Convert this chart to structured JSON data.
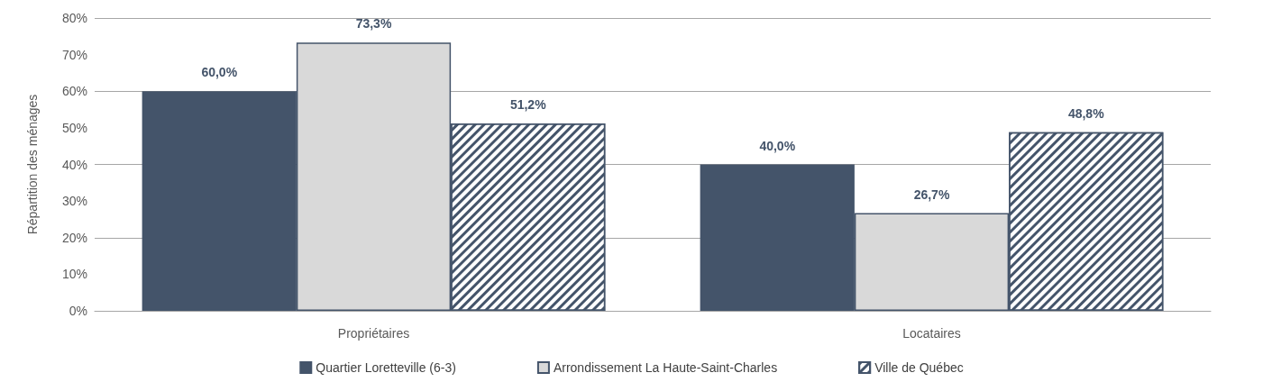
{
  "chart_data": {
    "type": "bar",
    "ylabel": "Répartition des ménages",
    "categories": [
      "Propriétaires",
      "Locataires"
    ],
    "series": [
      {
        "name": "Quartier Loretteville (6-3)",
        "color": "#44546a",
        "values": [
          60.0,
          40.0
        ],
        "value_labels": [
          "60,0%",
          "40,0%"
        ]
      },
      {
        "name": "Arrondissement La Haute-Saint-Charles",
        "color": "#d9d9d9",
        "values": [
          73.3,
          26.7
        ],
        "value_labels": [
          "73,3%",
          "26,7%"
        ]
      },
      {
        "name": "Ville de Québec",
        "color": "#44546a",
        "values": [
          51.2,
          48.8
        ],
        "value_labels": [
          "51,2%",
          "48,8%"
        ]
      }
    ],
    "ylim": [
      0,
      80
    ],
    "yticks": [
      {
        "value": 0,
        "label": "0%"
      },
      {
        "value": 10,
        "label": "10%"
      },
      {
        "value": 20,
        "label": "20%"
      },
      {
        "value": 30,
        "label": "30%"
      },
      {
        "value": 40,
        "label": "40%"
      },
      {
        "value": 50,
        "label": "50%"
      },
      {
        "value": 60,
        "label": "60%"
      },
      {
        "value": 70,
        "label": "70%"
      },
      {
        "value": 80,
        "label": "80%"
      }
    ],
    "grid": "y",
    "legend": "bottom"
  }
}
